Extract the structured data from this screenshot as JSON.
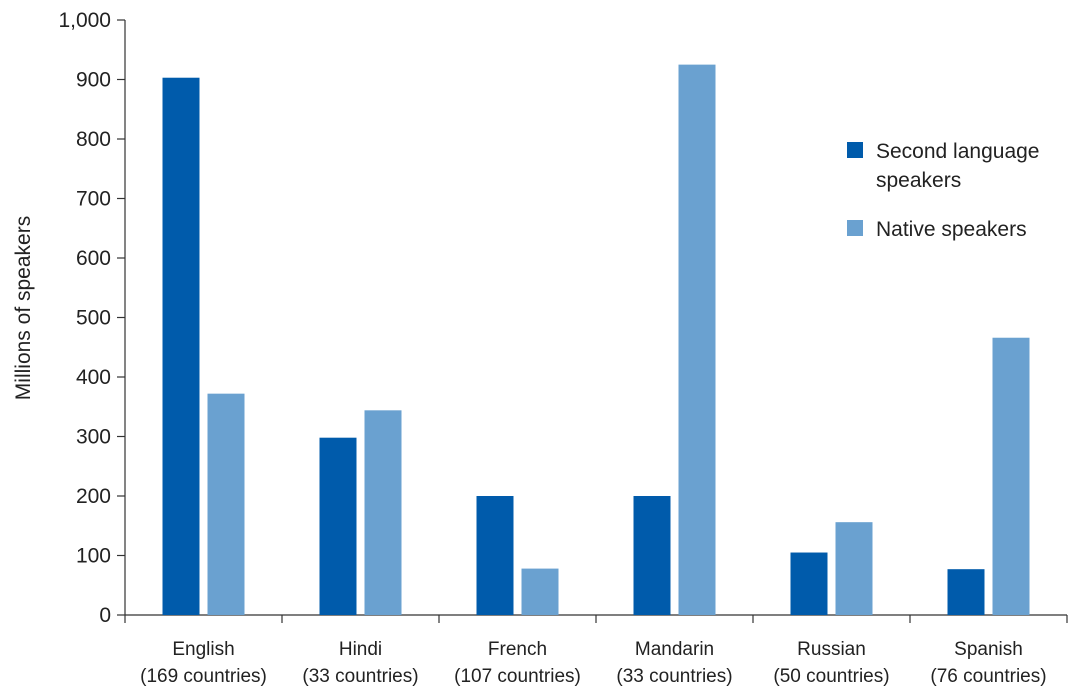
{
  "chart_data": {
    "type": "bar",
    "title": "",
    "xlabel": "",
    "ylabel": "Millions of speakers",
    "ylim": [
      0,
      1000
    ],
    "yticks": [
      "0",
      "100",
      "200",
      "300",
      "400",
      "500",
      "600",
      "700",
      "800",
      "900",
      "1,000"
    ],
    "ytick_values": [
      0,
      100,
      200,
      300,
      400,
      500,
      600,
      700,
      800,
      900,
      1000
    ],
    "grid": false,
    "legend_position": "top-right",
    "categories": [
      {
        "name": "English",
        "sub": "(169 countries)"
      },
      {
        "name": "Hindi",
        "sub": "(33 countries)"
      },
      {
        "name": "French",
        "sub": "(107 countries)"
      },
      {
        "name": "Mandarin",
        "sub": "(33 countries)"
      },
      {
        "name": "Russian",
        "sub": "(50 countries)"
      },
      {
        "name": "Spanish",
        "sub": "(76 countries)"
      }
    ],
    "series": [
      {
        "name_lines": [
          "Second language",
          "speakers"
        ],
        "color": "#005bab",
        "values": [
          903,
          298,
          200,
          200,
          105,
          77
        ]
      },
      {
        "name_lines": [
          "Native speakers"
        ],
        "color": "#6aa1d0",
        "values": [
          372,
          344,
          78,
          925,
          156,
          466
        ]
      }
    ]
  }
}
